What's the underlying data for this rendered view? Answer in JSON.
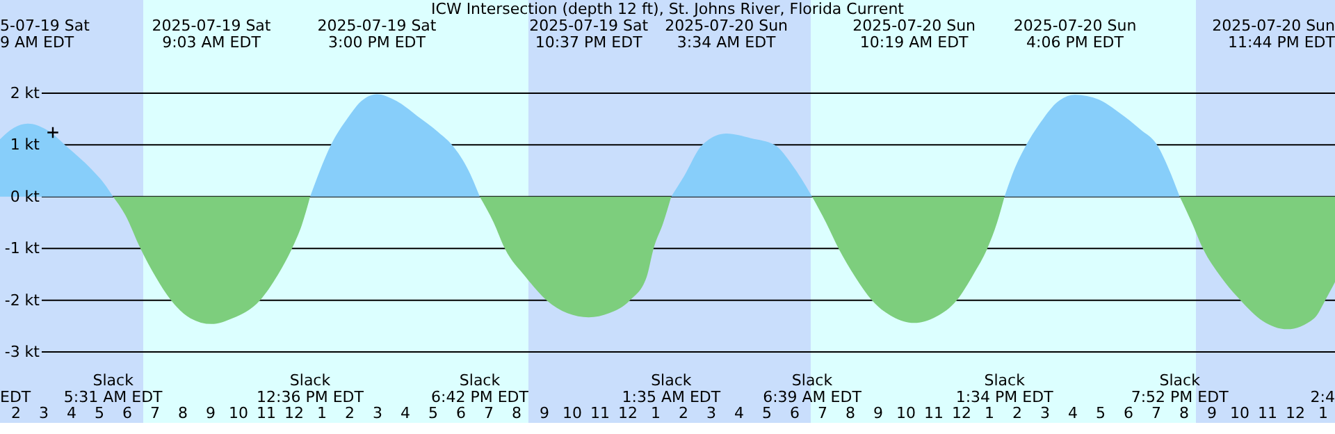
{
  "chart_data": {
    "type": "area",
    "title": "ICW Intersection (depth 12 ft), St. Johns River, Florida Current",
    "xlim": [
      "2025-07-19T01:27",
      "2025-07-21T01:27"
    ],
    "ylim": [
      -4.37,
      3.8
    ],
    "xticks": [
      {
        "value": "2025-07-19T02:00",
        "label": "2"
      },
      {
        "value": "2025-07-19T03:00",
        "label": "3"
      },
      {
        "value": "2025-07-19T04:00",
        "label": "4"
      },
      {
        "value": "2025-07-19T05:00",
        "label": "5"
      },
      {
        "value": "2025-07-19T06:00",
        "label": "6"
      },
      {
        "value": "2025-07-19T07:00",
        "label": "7"
      },
      {
        "value": "2025-07-19T08:00",
        "label": "8"
      },
      {
        "value": "2025-07-19T09:00",
        "label": "9"
      },
      {
        "value": "2025-07-19T10:00",
        "label": "10"
      },
      {
        "value": "2025-07-19T11:00",
        "label": "11"
      },
      {
        "value": "2025-07-19T12:00",
        "label": "12"
      },
      {
        "value": "2025-07-19T13:00",
        "label": "1"
      },
      {
        "value": "2025-07-19T14:00",
        "label": "2"
      },
      {
        "value": "2025-07-19T15:00",
        "label": "3"
      },
      {
        "value": "2025-07-19T16:00",
        "label": "4"
      },
      {
        "value": "2025-07-19T17:00",
        "label": "5"
      },
      {
        "value": "2025-07-19T18:00",
        "label": "6"
      },
      {
        "value": "2025-07-19T19:00",
        "label": "7"
      },
      {
        "value": "2025-07-19T20:00",
        "label": "8"
      },
      {
        "value": "2025-07-19T21:00",
        "label": "9"
      },
      {
        "value": "2025-07-19T22:00",
        "label": "10"
      },
      {
        "value": "2025-07-19T23:00",
        "label": "11"
      },
      {
        "value": "2025-07-20T00:00",
        "label": "12"
      },
      {
        "value": "2025-07-20T01:00",
        "label": "1"
      },
      {
        "value": "2025-07-20T02:00",
        "label": "2"
      },
      {
        "value": "2025-07-20T03:00",
        "label": "3"
      },
      {
        "value": "2025-07-20T04:00",
        "label": "4"
      },
      {
        "value": "2025-07-20T05:00",
        "label": "5"
      },
      {
        "value": "2025-07-20T06:00",
        "label": "6"
      },
      {
        "value": "2025-07-20T07:00",
        "label": "7"
      },
      {
        "value": "2025-07-20T08:00",
        "label": "8"
      },
      {
        "value": "2025-07-20T09:00",
        "label": "9"
      },
      {
        "value": "2025-07-20T10:00",
        "label": "10"
      },
      {
        "value": "2025-07-20T11:00",
        "label": "11"
      },
      {
        "value": "2025-07-20T12:00",
        "label": "12"
      },
      {
        "value": "2025-07-20T13:00",
        "label": "1"
      },
      {
        "value": "2025-07-20T14:00",
        "label": "2"
      },
      {
        "value": "2025-07-20T15:00",
        "label": "3"
      },
      {
        "value": "2025-07-20T16:00",
        "label": "4"
      },
      {
        "value": "2025-07-20T17:00",
        "label": "5"
      },
      {
        "value": "2025-07-20T18:00",
        "label": "6"
      },
      {
        "value": "2025-07-20T19:00",
        "label": "7"
      },
      {
        "value": "2025-07-20T20:00",
        "label": "8"
      },
      {
        "value": "2025-07-20T21:00",
        "label": "9"
      },
      {
        "value": "2025-07-20T22:00",
        "label": "10"
      },
      {
        "value": "2025-07-20T23:00",
        "label": "11"
      },
      {
        "value": "2025-07-21T00:00",
        "label": "12"
      },
      {
        "value": "2025-07-21T01:00",
        "label": "1"
      }
    ],
    "yticks": [
      {
        "value": -3,
        "label": "-3 kt"
      },
      {
        "value": -2,
        "label": "-2 kt"
      },
      {
        "value": -1,
        "label": "-1 kt"
      },
      {
        "value": 0,
        "label": "0 kt"
      },
      {
        "value": 1,
        "label": "1 kt"
      },
      {
        "value": 2,
        "label": "2 kt"
      }
    ],
    "grid": "y",
    "bands": [
      {
        "axis": "x",
        "from": "2025-07-19T01:27",
        "to": "2025-07-19T06:36",
        "color": "#c9defc"
      },
      {
        "axis": "x",
        "from": "2025-07-19T06:36",
        "to": "2025-07-19T20:27",
        "color": "#dcffff"
      },
      {
        "axis": "x",
        "from": "2025-07-19T20:27",
        "to": "2025-07-20T06:36",
        "color": "#c9defc"
      },
      {
        "axis": "x",
        "from": "2025-07-20T06:36",
        "to": "2025-07-20T20:27",
        "color": "#dcffff"
      },
      {
        "axis": "x",
        "from": "2025-07-20T20:27",
        "to": "2025-07-21T01:27",
        "color": "#c9defc"
      }
    ],
    "series": [
      {
        "color": "#87cefa",
        "x": [
          "2025-07-19T01:27",
          "2025-07-19T01:57",
          "2025-07-19T02:27",
          "2025-07-19T03:06",
          "2025-07-19T03:57",
          "2025-07-19T04:42",
          "2025-07-19T05:12",
          "2025-07-19T05:31"
        ],
        "values": [
          1.11,
          1.33,
          1.41,
          1.3,
          0.92,
          0.55,
          0.25,
          0
        ]
      },
      {
        "color": "#7dce7d",
        "x": [
          "2025-07-19T05:31",
          "2025-07-19T05:57",
          "2025-07-19T06:30",
          "2025-07-19T07:03",
          "2025-07-19T07:36",
          "2025-07-19T08:18",
          "2025-07-19T09:03",
          "2025-07-19T09:48",
          "2025-07-19T10:48",
          "2025-07-19T11:27",
          "2025-07-19T11:57",
          "2025-07-19T12:18",
          "2025-07-19T12:36"
        ],
        "values": [
          0,
          -0.35,
          -1,
          -1.55,
          -2,
          -2.35,
          -2.46,
          -2.35,
          -2,
          -1.5,
          -1,
          -0.55,
          0
        ]
      },
      {
        "color": "#87cefa",
        "x": [
          "2025-07-19T12:36",
          "2025-07-19T12:57",
          "2025-07-19T13:21",
          "2025-07-19T13:57",
          "2025-07-19T14:27",
          "2025-07-19T15:00",
          "2025-07-19T15:42",
          "2025-07-19T16:27",
          "2025-07-19T17:12",
          "2025-07-19T17:42",
          "2025-07-19T18:18",
          "2025-07-19T18:42"
        ],
        "values": [
          0,
          0.5,
          1,
          1.52,
          1.85,
          1.98,
          1.85,
          1.56,
          1.25,
          1,
          0.5,
          0
        ]
      },
      {
        "color": "#7dce7d",
        "x": [
          "2025-07-19T18:42",
          "2025-07-19T19:12",
          "2025-07-19T19:36",
          "2025-07-19T20:21",
          "2025-07-19T21:06",
          "2025-07-19T21:51",
          "2025-07-19T22:37",
          "2025-07-19T23:21",
          "2025-07-20T00:06",
          "2025-07-20T00:42",
          "2025-07-20T00:57",
          "2025-07-20T01:18",
          "2025-07-20T01:35"
        ],
        "values": [
          0,
          -0.5,
          -1,
          -1.55,
          -2,
          -2.25,
          -2.33,
          -2.25,
          -2,
          -1.55,
          -1,
          -0.5,
          0
        ]
      },
      {
        "color": "#87cefa",
        "x": [
          "2025-07-20T01:35",
          "2025-07-20T02:03",
          "2025-07-20T02:42",
          "2025-07-20T03:34",
          "2025-07-20T04:27",
          "2025-07-20T05:18",
          "2025-07-20T05:57",
          "2025-07-20T06:39"
        ],
        "values": [
          0,
          0.4,
          1,
          1.22,
          1.13,
          1,
          0.6,
          0
        ]
      },
      {
        "color": "#7dce7d",
        "x": [
          "2025-07-20T06:39",
          "2025-07-20T07:09",
          "2025-07-20T07:36",
          "2025-07-20T08:12",
          "2025-07-20T08:48",
          "2025-07-20T09:33",
          "2025-07-20T10:19",
          "2025-07-20T11:06",
          "2025-07-20T11:51",
          "2025-07-20T12:27",
          "2025-07-20T12:57",
          "2025-07-20T13:18",
          "2025-07-20T13:34"
        ],
        "values": [
          0,
          -0.5,
          -1,
          -1.55,
          -2,
          -2.32,
          -2.44,
          -2.32,
          -2,
          -1.5,
          -1,
          -0.5,
          0
        ]
      },
      {
        "color": "#87cefa",
        "x": [
          "2025-07-20T13:34",
          "2025-07-20T13:54",
          "2025-07-20T14:21",
          "2025-07-20T14:57",
          "2025-07-20T15:27",
          "2025-07-20T16:06",
          "2025-07-20T16:57",
          "2025-07-20T17:42",
          "2025-07-20T18:27",
          "2025-07-20T19:03",
          "2025-07-20T19:30",
          "2025-07-20T19:52"
        ],
        "values": [
          0,
          0.5,
          1,
          1.5,
          1.82,
          1.97,
          1.88,
          1.62,
          1.3,
          1,
          0.5,
          0
        ]
      },
      {
        "color": "#7dce7d",
        "x": [
          "2025-07-20T19:52",
          "2025-07-20T20:18",
          "2025-07-20T20:42",
          "2025-07-20T21:21",
          "2025-07-20T22:03",
          "2025-07-20T22:51",
          "2025-07-20T23:44",
          "2025-07-21T00:42",
          "2025-07-21T01:06",
          "2025-07-21T01:27"
        ],
        "values": [
          0,
          -0.5,
          -1,
          -1.55,
          -2,
          -2.4,
          -2.56,
          -2.35,
          -2,
          -1.65
        ]
      },
      {
        "type": "scatter",
        "marker": "cross",
        "color": "#000000",
        "x": [
          "2025-07-19T03:21"
        ],
        "values": [
          1.24
        ]
      }
    ],
    "annotations": [
      "5-07-19 Sat\n9 AM EDT",
      "2025-07-19 Sat\n9:03 AM EDT",
      "2025-07-19 Sat\n3:00 PM EDT",
      "2025-07-19 Sat\n10:37 PM EDT",
      "2025-07-20 Sun\n3:34 AM EDT",
      "2025-07-20 Sun\n10:19 AM EDT",
      "2025-07-20 Sun\n4:06 PM EDT",
      "2025-07-20 Sun\n11:44 PM EDT",
      "EDT",
      "Slack\n5:31 AM EDT",
      "Slack\n12:36 PM EDT",
      "Slack\n6:42 PM EDT",
      "Slack\n1:35 AM EDT",
      "Slack\n6:39 AM EDT",
      "Slack\n1:34 PM EDT",
      "Slack\n7:52 PM EDT",
      "2:4"
    ]
  }
}
